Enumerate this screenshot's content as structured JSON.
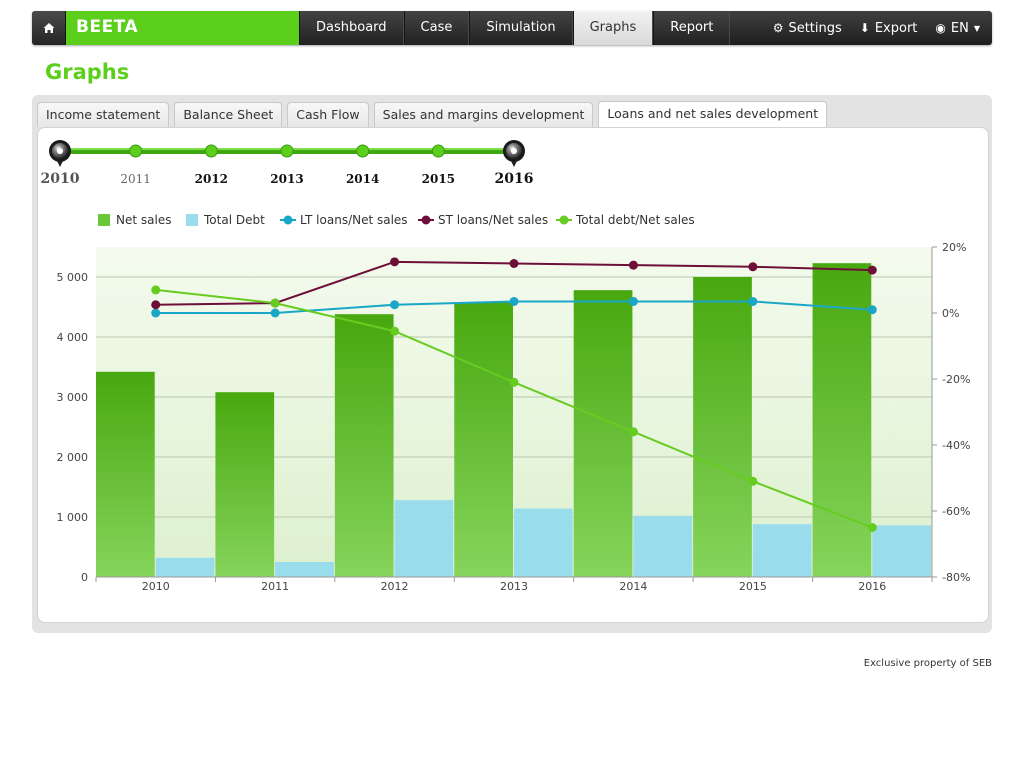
{
  "app": {
    "name": "BEETA"
  },
  "nav": {
    "tabs": [
      {
        "label": "Dashboard",
        "active": false
      },
      {
        "label": "Case",
        "active": false
      },
      {
        "label": "Simulation",
        "active": false
      },
      {
        "label": "Graphs",
        "active": true
      },
      {
        "label": "Report",
        "active": false
      }
    ],
    "settings_label": "Settings",
    "export_label": "Export",
    "language_label": "EN"
  },
  "page": {
    "title": "Graphs"
  },
  "graph_tabs": [
    {
      "label": "Income statement",
      "active": false
    },
    {
      "label": "Balance Sheet",
      "active": false
    },
    {
      "label": "Cash Flow",
      "active": false
    },
    {
      "label": "Sales and margins development",
      "active": false
    },
    {
      "label": "Loans and net sales development",
      "active": true
    }
  ],
  "year_slider": {
    "years": [
      "2010",
      "2011",
      "2012",
      "2013",
      "2014",
      "2015",
      "2016"
    ],
    "range_start": "2010",
    "range_end": "2016"
  },
  "footer": {
    "note": "Exclusive property of SEB"
  },
  "colors": {
    "brand_green": "#5ccf1c",
    "net_sales": "#6cc63a",
    "total_debt": "#99dcec",
    "lt_loans": "#1aa6c6",
    "st_loans": "#6e0f3a",
    "total_debt_ratio": "#66cc1f"
  },
  "chart_data": {
    "type": "bar",
    "categories": [
      "2010",
      "2011",
      "2012",
      "2013",
      "2014",
      "2015",
      "2016"
    ],
    "legend_position": "top",
    "grid": true,
    "left_axis": {
      "ylim": [
        0,
        5500
      ],
      "ticks": [
        0,
        1000,
        2000,
        3000,
        4000,
        5000
      ],
      "tick_labels": [
        "0",
        "1 000",
        "2 000",
        "3 000",
        "4 000",
        "5 000"
      ]
    },
    "right_axis": {
      "ylim": [
        -80,
        20
      ],
      "ticks": [
        -80,
        -60,
        -40,
        -20,
        0,
        20
      ],
      "tick_labels": [
        "-80%",
        "-60%",
        "-40%",
        "-20%",
        "0%",
        "20%"
      ]
    },
    "bar_series": [
      {
        "name": "Net sales",
        "axis": "left",
        "values": [
          3420,
          3080,
          4380,
          4580,
          4780,
          5000,
          5230
        ]
      },
      {
        "name": "Total Debt",
        "axis": "left",
        "values": [
          320,
          250,
          1280,
          1140,
          1020,
          880,
          860
        ]
      }
    ],
    "line_series": [
      {
        "name": "LT loans/Net sales",
        "axis": "right",
        "values": [
          0,
          0,
          2.5,
          3.5,
          3.5,
          3.5,
          1
        ]
      },
      {
        "name": "ST loans/Net sales",
        "axis": "right",
        "values": [
          2.5,
          3,
          15.5,
          15,
          14.5,
          14,
          13
        ]
      },
      {
        "name": "Total debt/Net sales",
        "axis": "right",
        "values": [
          7,
          3,
          -5.5,
          -21,
          -36,
          -51,
          -65
        ]
      }
    ]
  }
}
